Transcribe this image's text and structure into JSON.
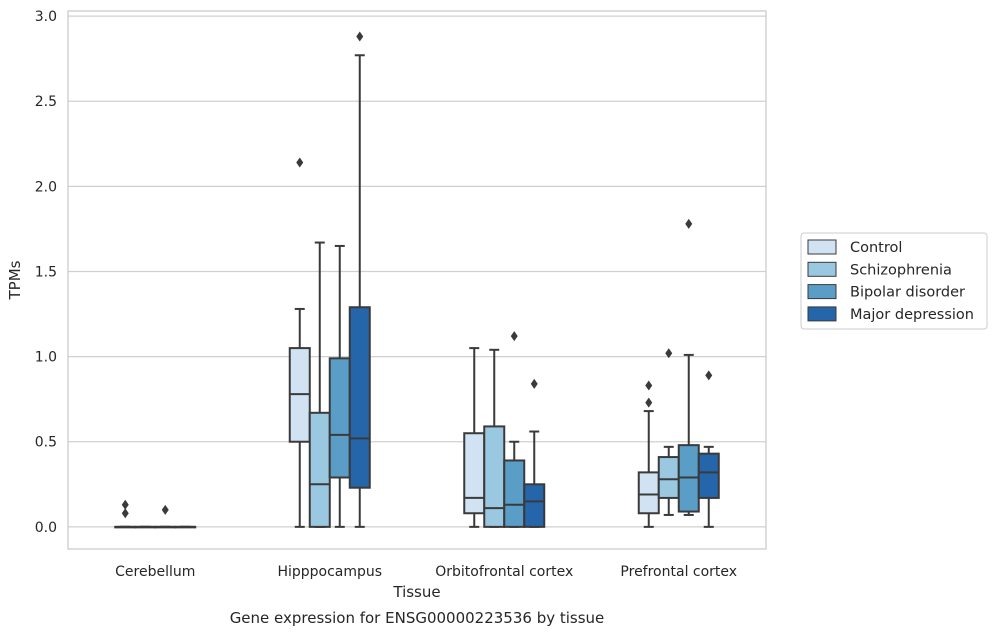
{
  "chart_data": {
    "type": "box",
    "title": "",
    "caption": "Gene expression for ENSG00000223536 by tissue",
    "xlabel": "Tissue",
    "ylabel": "TPMs",
    "ylim": [
      -0.13,
      3.03
    ],
    "yticks": [
      "0.0",
      "0.5",
      "1.0",
      "1.5",
      "2.0",
      "2.5",
      "3.0"
    ],
    "grid": "horizontal",
    "legend_position": "right",
    "categories": [
      "Cerebellum",
      "Hipppocampus",
      "Orbitofrontal cortex",
      "Prefrontal cortex"
    ],
    "series": [
      {
        "name": "Control",
        "color": "#d1e2f2",
        "boxes": [
          {
            "whisker_low": 0.0,
            "q1": 0.0,
            "median": 0.0,
            "q3": 0.0,
            "whisker_high": 0.0,
            "outliers": [
              0.08,
              0.13
            ]
          },
          {
            "whisker_low": 0.0,
            "q1": 0.5,
            "median": 0.78,
            "q3": 1.05,
            "whisker_high": 1.28,
            "outliers": [
              2.14
            ]
          },
          {
            "whisker_low": 0.0,
            "q1": 0.08,
            "median": 0.17,
            "q3": 0.55,
            "whisker_high": 1.05,
            "outliers": []
          },
          {
            "whisker_low": 0.0,
            "q1": 0.08,
            "median": 0.19,
            "q3": 0.32,
            "whisker_high": 0.68,
            "outliers": [
              0.73,
              0.83
            ]
          }
        ]
      },
      {
        "name": "Schizophrenia",
        "color": "#9ac8e0",
        "boxes": [
          {
            "whisker_low": 0.0,
            "q1": 0.0,
            "median": 0.0,
            "q3": 0.0,
            "whisker_high": 0.0,
            "outliers": []
          },
          {
            "whisker_low": 0.0,
            "q1": 0.0,
            "median": 0.25,
            "q3": 0.67,
            "whisker_high": 1.67,
            "outliers": []
          },
          {
            "whisker_low": 0.0,
            "q1": 0.0,
            "median": 0.11,
            "q3": 0.59,
            "whisker_high": 1.04,
            "outliers": []
          },
          {
            "whisker_low": 0.07,
            "q1": 0.17,
            "median": 0.28,
            "q3": 0.41,
            "whisker_high": 0.47,
            "outliers": [
              1.02
            ]
          }
        ]
      },
      {
        "name": "Bipolar disorder",
        "color": "#5a9ec8",
        "boxes": [
          {
            "whisker_low": 0.0,
            "q1": 0.0,
            "median": 0.0,
            "q3": 0.0,
            "whisker_high": 0.0,
            "outliers": [
              0.1
            ]
          },
          {
            "whisker_low": 0.0,
            "q1": 0.29,
            "median": 0.54,
            "q3": 0.99,
            "whisker_high": 1.65,
            "outliers": []
          },
          {
            "whisker_low": 0.0,
            "q1": 0.0,
            "median": 0.13,
            "q3": 0.39,
            "whisker_high": 0.5,
            "outliers": [
              1.12
            ]
          },
          {
            "whisker_low": 0.07,
            "q1": 0.09,
            "median": 0.29,
            "q3": 0.48,
            "whisker_high": 1.01,
            "outliers": [
              1.78
            ]
          }
        ]
      },
      {
        "name": "Major depression",
        "color": "#2565aa",
        "boxes": [
          {
            "whisker_low": 0.0,
            "q1": 0.0,
            "median": 0.0,
            "q3": 0.0,
            "whisker_high": 0.0,
            "outliers": []
          },
          {
            "whisker_low": 0.0,
            "q1": 0.23,
            "median": 0.52,
            "q3": 1.29,
            "whisker_high": 2.77,
            "outliers": [
              2.88
            ]
          },
          {
            "whisker_low": 0.0,
            "q1": 0.0,
            "median": 0.15,
            "q3": 0.25,
            "whisker_high": 0.56,
            "outliers": [
              0.84
            ]
          },
          {
            "whisker_low": 0.0,
            "q1": 0.17,
            "median": 0.32,
            "q3": 0.43,
            "whisker_high": 0.47,
            "outliers": [
              0.89
            ]
          }
        ]
      }
    ]
  }
}
